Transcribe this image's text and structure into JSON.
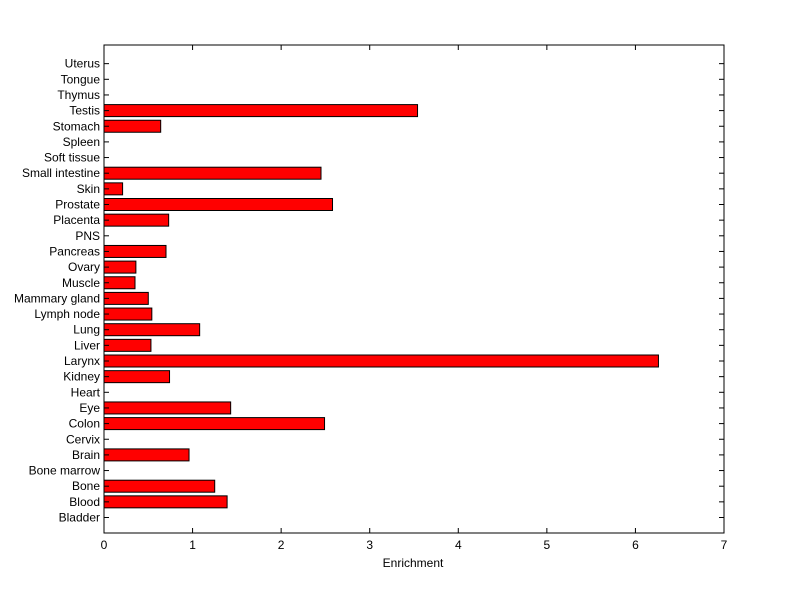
{
  "chart_data": {
    "type": "bar",
    "orientation": "horizontal",
    "xlabel": "Enrichment",
    "ylabel": "",
    "title": "",
    "xlim": [
      0,
      7
    ],
    "xticks": [
      0,
      1,
      2,
      3,
      4,
      5,
      6,
      7
    ],
    "grid": false,
    "bar_color": "#ff0000",
    "edge_color": "#000000",
    "categories": [
      "Bladder",
      "Blood",
      "Bone",
      "Bone marrow",
      "Brain",
      "Cervix",
      "Colon",
      "Eye",
      "Heart",
      "Kidney",
      "Larynx",
      "Liver",
      "Lung",
      "Lymph node",
      "Mammary gland",
      "Muscle",
      "Ovary",
      "Pancreas",
      "PNS",
      "Placenta",
      "Prostate",
      "Skin",
      "Small intestine",
      "Soft tissue",
      "Spleen",
      "Stomach",
      "Testis",
      "Thymus",
      "Tongue",
      "Uterus"
    ],
    "values": [
      0,
      1.39,
      1.25,
      0,
      0.96,
      0,
      2.49,
      1.43,
      0,
      0.74,
      6.26,
      0.53,
      1.08,
      0.54,
      0.5,
      0.35,
      0.36,
      0.7,
      0,
      0.73,
      2.58,
      0.21,
      2.45,
      0,
      0,
      0.64,
      3.54,
      0,
      0,
      0
    ]
  }
}
